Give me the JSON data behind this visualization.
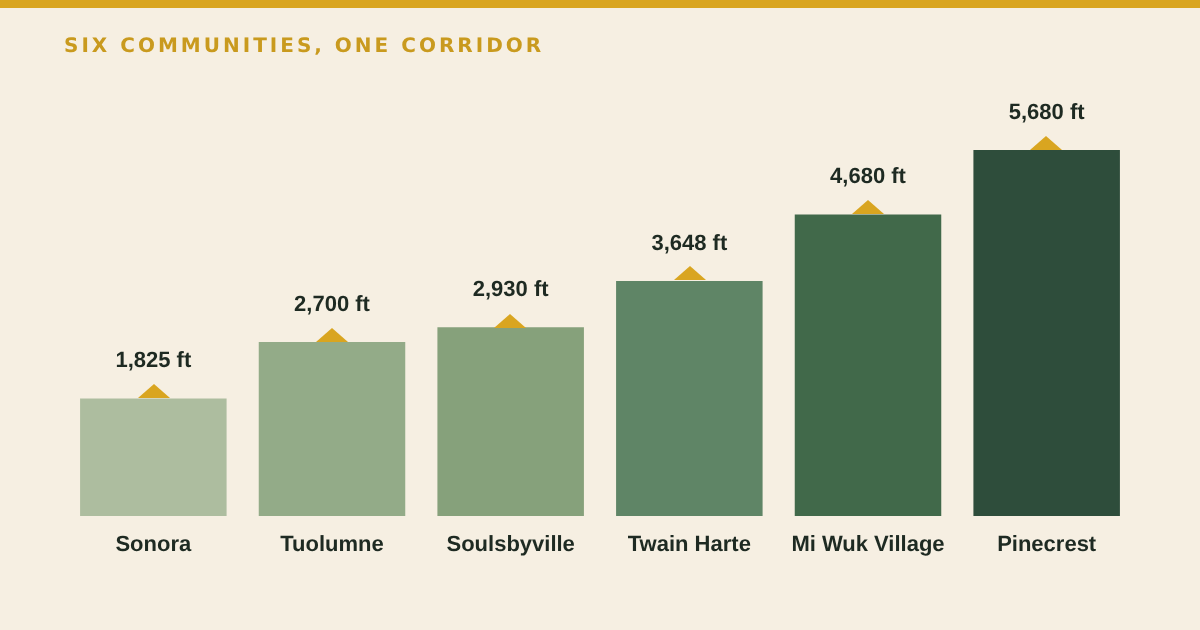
{
  "chart_data": {
    "type": "bar",
    "title": "SIX COMMUNITIES, ONE CORRIDOR",
    "categories": [
      "Sonora",
      "Tuolumne",
      "Soulsbyville",
      "Twain Harte",
      "Mi Wuk Village",
      "Pinecrest"
    ],
    "values": [
      1825,
      2700,
      2930,
      3648,
      4680,
      5680
    ],
    "value_labels": [
      "1,825 ft",
      "2,700 ft",
      "2,930 ft",
      "3,648 ft",
      "4,680 ft",
      "5,680 ft"
    ],
    "colors": [
      "#adbd9f",
      "#93ab88",
      "#86a17b",
      "#5f8566",
      "#41694a",
      "#2e4d3b"
    ]
  }
}
